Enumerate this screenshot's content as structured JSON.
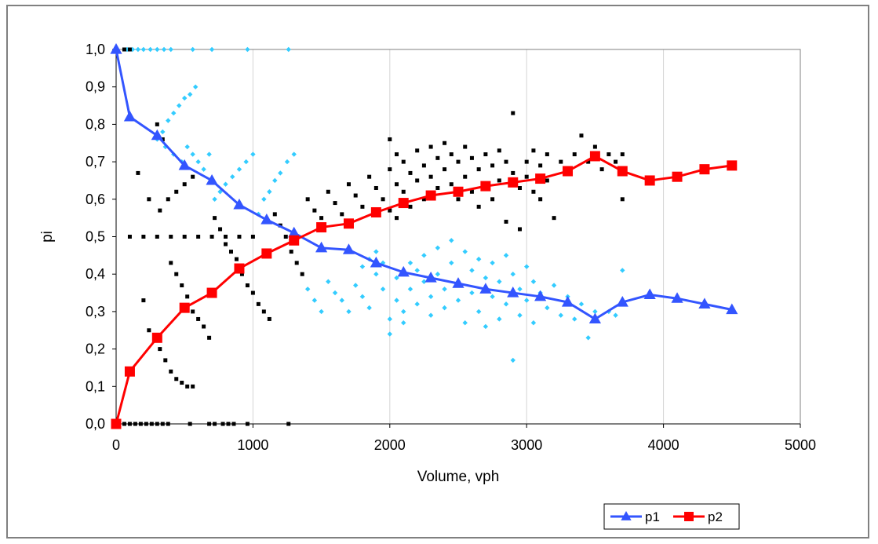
{
  "chart_data": {
    "type": "scatter",
    "xlabel": "Volume, vph",
    "ylabel": "pi",
    "xlim": [
      0,
      5000
    ],
    "ylim": [
      0,
      1
    ],
    "x_ticks": [
      0,
      1000,
      2000,
      3000,
      4000,
      5000
    ],
    "x_tick_labels": [
      "0",
      "1000",
      "2000",
      "3000",
      "4000",
      "5000"
    ],
    "y_ticks": [
      0,
      0.1,
      0.2,
      0.3,
      0.4,
      0.5,
      0.6,
      0.7,
      0.8,
      0.9,
      1.0
    ],
    "y_tick_labels": [
      "0,0",
      "0,1",
      "0,2",
      "0,3",
      "0,4",
      "0,5",
      "0,6",
      "0,7",
      "0,8",
      "0,9",
      "1,0"
    ],
    "grid": "vertical major gridlines",
    "legend_position": "bottom-right",
    "series": [
      {
        "name": "p1",
        "type": "line",
        "color": "#3355ff",
        "marker": "triangle",
        "x": [
          0,
          100,
          300,
          500,
          700,
          900,
          1100,
          1300,
          1500,
          1700,
          1900,
          2100,
          2300,
          2500,
          2700,
          2900,
          3100,
          3300,
          3500,
          3700,
          3900,
          4100,
          4300,
          4500
        ],
        "y": [
          1.0,
          0.82,
          0.77,
          0.69,
          0.65,
          0.585,
          0.545,
          0.51,
          0.47,
          0.465,
          0.43,
          0.405,
          0.39,
          0.375,
          0.36,
          0.35,
          0.34,
          0.325,
          0.28,
          0.325,
          0.345,
          0.335,
          0.32,
          0.305
        ]
      },
      {
        "name": "p2",
        "type": "line",
        "color": "#ff0000",
        "marker": "square",
        "x": [
          0,
          100,
          300,
          500,
          700,
          900,
          1100,
          1300,
          1500,
          1700,
          1900,
          2100,
          2300,
          2500,
          2700,
          2900,
          3100,
          3300,
          3500,
          3700,
          3900,
          4100,
          4300,
          4500
        ],
        "y": [
          0.0,
          0.14,
          0.23,
          0.31,
          0.35,
          0.415,
          0.455,
          0.49,
          0.525,
          0.535,
          0.565,
          0.59,
          0.61,
          0.62,
          0.635,
          0.645,
          0.655,
          0.675,
          0.715,
          0.675,
          0.65,
          0.66,
          0.68,
          0.69
        ]
      }
    ],
    "scatter_clouds": [
      {
        "role": "observed p1 (unlabeled)",
        "color": "#33ccff",
        "points": [
          [
            0,
            1.0
          ],
          [
            80,
            1.0
          ],
          [
            120,
            1.0
          ],
          [
            160,
            1.0
          ],
          [
            200,
            1.0
          ],
          [
            250,
            1.0
          ],
          [
            300,
            1.0
          ],
          [
            350,
            1.0
          ],
          [
            400,
            1.0
          ],
          [
            560,
            1.0
          ],
          [
            700,
            1.0
          ],
          [
            960,
            1.0
          ],
          [
            1260,
            1.0
          ],
          [
            340,
            0.78
          ],
          [
            380,
            0.81
          ],
          [
            420,
            0.83
          ],
          [
            460,
            0.85
          ],
          [
            500,
            0.87
          ],
          [
            540,
            0.88
          ],
          [
            580,
            0.9
          ],
          [
            300,
            0.76
          ],
          [
            360,
            0.74
          ],
          [
            420,
            0.72
          ],
          [
            480,
            0.7
          ],
          [
            520,
            0.74
          ],
          [
            560,
            0.72
          ],
          [
            600,
            0.7
          ],
          [
            640,
            0.68
          ],
          [
            680,
            0.72
          ],
          [
            720,
            0.6
          ],
          [
            760,
            0.62
          ],
          [
            800,
            0.64
          ],
          [
            850,
            0.66
          ],
          [
            900,
            0.68
          ],
          [
            950,
            0.7
          ],
          [
            1000,
            0.72
          ],
          [
            1040,
            0.56
          ],
          [
            1080,
            0.6
          ],
          [
            1120,
            0.62
          ],
          [
            1160,
            0.65
          ],
          [
            1200,
            0.67
          ],
          [
            1250,
            0.7
          ],
          [
            1300,
            0.72
          ],
          [
            1400,
            0.36
          ],
          [
            1450,
            0.33
          ],
          [
            1500,
            0.3
          ],
          [
            1550,
            0.38
          ],
          [
            1600,
            0.35
          ],
          [
            1650,
            0.33
          ],
          [
            1700,
            0.3
          ],
          [
            1750,
            0.37
          ],
          [
            1800,
            0.34
          ],
          [
            1850,
            0.31
          ],
          [
            1900,
            0.4
          ],
          [
            1950,
            0.36
          ],
          [
            1800,
            0.42
          ],
          [
            1850,
            0.44
          ],
          [
            1900,
            0.46
          ],
          [
            1950,
            0.43
          ],
          [
            2000,
            0.28
          ],
          [
            2000,
            0.24
          ],
          [
            2050,
            0.39
          ],
          [
            2050,
            0.33
          ],
          [
            2100,
            0.3
          ],
          [
            2100,
            0.27
          ],
          [
            2150,
            0.43
          ],
          [
            2150,
            0.36
          ],
          [
            2200,
            0.32
          ],
          [
            2200,
            0.41
          ],
          [
            2250,
            0.45
          ],
          [
            2250,
            0.38
          ],
          [
            2300,
            0.34
          ],
          [
            2300,
            0.29
          ],
          [
            2350,
            0.47
          ],
          [
            2350,
            0.4
          ],
          [
            2400,
            0.36
          ],
          [
            2400,
            0.31
          ],
          [
            2450,
            0.49
          ],
          [
            2450,
            0.43
          ],
          [
            2500,
            0.38
          ],
          [
            2500,
            0.33
          ],
          [
            2550,
            0.46
          ],
          [
            2550,
            0.27
          ],
          [
            2600,
            0.41
          ],
          [
            2600,
            0.35
          ],
          [
            2650,
            0.44
          ],
          [
            2650,
            0.3
          ],
          [
            2700,
            0.39
          ],
          [
            2700,
            0.26
          ],
          [
            2750,
            0.43
          ],
          [
            2750,
            0.34
          ],
          [
            2800,
            0.38
          ],
          [
            2800,
            0.28
          ],
          [
            2850,
            0.45
          ],
          [
            2850,
            0.32
          ],
          [
            2900,
            0.4
          ],
          [
            2900,
            0.17
          ],
          [
            2950,
            0.36
          ],
          [
            2950,
            0.29
          ],
          [
            3000,
            0.42
          ],
          [
            3000,
            0.33
          ],
          [
            3050,
            0.38
          ],
          [
            3050,
            0.27
          ],
          [
            3100,
            0.35
          ],
          [
            3150,
            0.31
          ],
          [
            3200,
            0.37
          ],
          [
            3250,
            0.29
          ],
          [
            3300,
            0.34
          ],
          [
            3350,
            0.28
          ],
          [
            3400,
            0.32
          ],
          [
            3450,
            0.23
          ],
          [
            3500,
            0.3
          ],
          [
            3600,
            0.3
          ],
          [
            3650,
            0.29
          ],
          [
            3700,
            0.41
          ]
        ]
      },
      {
        "role": "observed p2 (unlabeled)",
        "color": "#000000",
        "points": [
          [
            0,
            0.0
          ],
          [
            60,
            0.0
          ],
          [
            100,
            0.0
          ],
          [
            140,
            0.0
          ],
          [
            180,
            0.0
          ],
          [
            220,
            0.0
          ],
          [
            260,
            0.0
          ],
          [
            300,
            0.0
          ],
          [
            340,
            0.0
          ],
          [
            380,
            0.0
          ],
          [
            540,
            0.0
          ],
          [
            680,
            0.0
          ],
          [
            720,
            0.0
          ],
          [
            780,
            0.0
          ],
          [
            820,
            0.0
          ],
          [
            860,
            0.0
          ],
          [
            960,
            0.0
          ],
          [
            1260,
            0.0
          ],
          [
            60,
            1.0
          ],
          [
            100,
            1.0
          ],
          [
            200,
            0.33
          ],
          [
            240,
            0.25
          ],
          [
            320,
            0.2
          ],
          [
            360,
            0.17
          ],
          [
            400,
            0.14
          ],
          [
            440,
            0.12
          ],
          [
            480,
            0.11
          ],
          [
            520,
            0.1
          ],
          [
            560,
            0.1
          ],
          [
            100,
            0.5
          ],
          [
            200,
            0.5
          ],
          [
            300,
            0.5
          ],
          [
            400,
            0.5
          ],
          [
            500,
            0.5
          ],
          [
            600,
            0.5
          ],
          [
            700,
            0.5
          ],
          [
            800,
            0.5
          ],
          [
            900,
            0.5
          ],
          [
            1000,
            0.5
          ],
          [
            160,
            0.67
          ],
          [
            240,
            0.6
          ],
          [
            320,
            0.57
          ],
          [
            380,
            0.6
          ],
          [
            440,
            0.62
          ],
          [
            500,
            0.64
          ],
          [
            560,
            0.66
          ],
          [
            300,
            0.8
          ],
          [
            340,
            0.76
          ],
          [
            400,
            0.43
          ],
          [
            440,
            0.4
          ],
          [
            480,
            0.37
          ],
          [
            520,
            0.34
          ],
          [
            560,
            0.3
          ],
          [
            600,
            0.28
          ],
          [
            640,
            0.26
          ],
          [
            680,
            0.23
          ],
          [
            720,
            0.55
          ],
          [
            760,
            0.52
          ],
          [
            800,
            0.48
          ],
          [
            840,
            0.46
          ],
          [
            880,
            0.44
          ],
          [
            920,
            0.4
          ],
          [
            960,
            0.37
          ],
          [
            1000,
            0.35
          ],
          [
            1040,
            0.32
          ],
          [
            1080,
            0.3
          ],
          [
            1120,
            0.28
          ],
          [
            1160,
            0.56
          ],
          [
            1200,
            0.53
          ],
          [
            1240,
            0.5
          ],
          [
            1280,
            0.46
          ],
          [
            1320,
            0.43
          ],
          [
            1360,
            0.4
          ],
          [
            1400,
            0.6
          ],
          [
            1450,
            0.57
          ],
          [
            1500,
            0.55
          ],
          [
            1550,
            0.62
          ],
          [
            1600,
            0.59
          ],
          [
            1650,
            0.56
          ],
          [
            1700,
            0.64
          ],
          [
            1750,
            0.61
          ],
          [
            1800,
            0.58
          ],
          [
            1850,
            0.66
          ],
          [
            1900,
            0.63
          ],
          [
            1950,
            0.6
          ],
          [
            2000,
            0.76
          ],
          [
            2000,
            0.68
          ],
          [
            2000,
            0.57
          ],
          [
            2050,
            0.72
          ],
          [
            2050,
            0.64
          ],
          [
            2050,
            0.55
          ],
          [
            2100,
            0.7
          ],
          [
            2100,
            0.62
          ],
          [
            2150,
            0.67
          ],
          [
            2150,
            0.58
          ],
          [
            2200,
            0.73
          ],
          [
            2200,
            0.65
          ],
          [
            2250,
            0.69
          ],
          [
            2250,
            0.6
          ],
          [
            2300,
            0.74
          ],
          [
            2300,
            0.66
          ],
          [
            2350,
            0.71
          ],
          [
            2350,
            0.63
          ],
          [
            2400,
            0.75
          ],
          [
            2400,
            0.68
          ],
          [
            2450,
            0.72
          ],
          [
            2450,
            0.64
          ],
          [
            2500,
            0.7
          ],
          [
            2500,
            0.6
          ],
          [
            2550,
            0.74
          ],
          [
            2550,
            0.66
          ],
          [
            2600,
            0.71
          ],
          [
            2600,
            0.62
          ],
          [
            2650,
            0.68
          ],
          [
            2650,
            0.58
          ],
          [
            2700,
            0.72
          ],
          [
            2700,
            0.64
          ],
          [
            2750,
            0.69
          ],
          [
            2750,
            0.6
          ],
          [
            2800,
            0.73
          ],
          [
            2800,
            0.65
          ],
          [
            2850,
            0.7
          ],
          [
            2850,
            0.54
          ],
          [
            2900,
            0.83
          ],
          [
            2900,
            0.67
          ],
          [
            2950,
            0.63
          ],
          [
            2950,
            0.52
          ],
          [
            3000,
            0.7
          ],
          [
            3000,
            0.66
          ],
          [
            3050,
            0.73
          ],
          [
            3050,
            0.62
          ],
          [
            3100,
            0.69
          ],
          [
            3100,
            0.6
          ],
          [
            3150,
            0.72
          ],
          [
            3150,
            0.65
          ],
          [
            3200,
            0.55
          ],
          [
            3250,
            0.7
          ],
          [
            3300,
            0.67
          ],
          [
            3350,
            0.72
          ],
          [
            3400,
            0.77
          ],
          [
            3450,
            0.7
          ],
          [
            3500,
            0.74
          ],
          [
            3550,
            0.68
          ],
          [
            3600,
            0.72
          ],
          [
            3650,
            0.7
          ],
          [
            3700,
            0.6
          ],
          [
            3700,
            0.72
          ]
        ]
      }
    ]
  }
}
